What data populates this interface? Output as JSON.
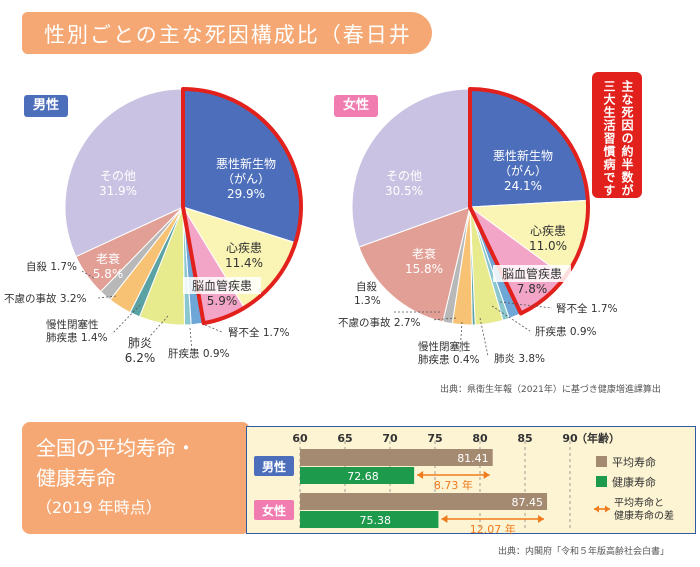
{
  "title": "性別ごとの主な死因構成比（春日井市）",
  "callout": {
    "line1": "主な死因の約半数が",
    "line2": "三大生活習慣病です"
  },
  "source1": "出典：県衛生年報（2021年）に基づき健康増進課算出",
  "section2_title": {
    "line1": "全国の平均寿命・",
    "line2": "健康寿命",
    "line3": "（2019 年時点）"
  },
  "source2": "出典：内閣府「令和５年版高齢社会白書」",
  "colors": {
    "cancer": "#4d6fbb",
    "heart": "#fbf5b5",
    "cerebro": "#f3a5c8",
    "kidney": "#6fa6d8",
    "liver": "#8ac7cf",
    "pneumonia": "#e7ea8d",
    "copd": "#5aa2a4",
    "accident": "#f8c275",
    "suicide": "#b8b8b8",
    "senility": "#e19f96",
    "other": "#c9c2e2",
    "highlight": "#e2211c",
    "male": "#4d6fbb",
    "female": "#f07cb0",
    "life": "#a58a72",
    "healthy": "#1e9a4c",
    "gap_arrow": "#f07b1d"
  },
  "chart_data": [
    {
      "type": "pie",
      "title": "男性",
      "slices": [
        {
          "key": "cancer",
          "label": "悪性新生物（がん）",
          "pct": "29.9%",
          "value": 29.9
        },
        {
          "key": "heart",
          "label": "心疾患",
          "pct": "11.4%",
          "value": 11.4
        },
        {
          "key": "cerebro",
          "label": "脳血管疾患",
          "pct": "5.9%",
          "value": 5.9
        },
        {
          "key": "kidney",
          "label": "腎不全",
          "pct": "1.7%",
          "value": 1.7
        },
        {
          "key": "liver",
          "label": "肝疾患",
          "pct": "0.9%",
          "value": 0.9
        },
        {
          "key": "pneumonia",
          "label": "肺炎",
          "pct": "6.2%",
          "value": 6.2
        },
        {
          "key": "copd",
          "label": "慢性閉塞性肺疾患",
          "pct": "1.4%",
          "value": 1.4
        },
        {
          "key": "accident",
          "label": "不慮の事故",
          "pct": "3.2%",
          "value": 3.2
        },
        {
          "key": "suicide",
          "label": "自殺",
          "pct": "1.7%",
          "value": 1.7
        },
        {
          "key": "senility",
          "label": "老衰",
          "pct": "5.8%",
          "value": 5.8
        },
        {
          "key": "other",
          "label": "その他",
          "pct": "31.9%",
          "value": 31.9
        }
      ]
    },
    {
      "type": "pie",
      "title": "女性",
      "slices": [
        {
          "key": "cancer",
          "label": "悪性新生物（がん）",
          "pct": "24.1%",
          "value": 24.1
        },
        {
          "key": "heart",
          "label": "心疾患",
          "pct": "11.0%",
          "value": 11.0
        },
        {
          "key": "cerebro",
          "label": "脳血管疾患",
          "pct": "7.8%",
          "value": 7.8
        },
        {
          "key": "kidney",
          "label": "腎不全",
          "pct": "1.7%",
          "value": 1.7
        },
        {
          "key": "liver",
          "label": "肝疾患",
          "pct": "0.9%",
          "value": 0.9
        },
        {
          "key": "pneumonia",
          "label": "肺炎",
          "pct": "3.8%",
          "value": 3.8
        },
        {
          "key": "copd",
          "label": "慢性閉塞性肺疾患",
          "pct": "0.4%",
          "value": 0.4
        },
        {
          "key": "accident",
          "label": "不慮の事故",
          "pct": "2.7%",
          "value": 2.7
        },
        {
          "key": "suicide",
          "label": "自殺",
          "pct": "1.3%",
          "value": 1.3
        },
        {
          "key": "senility",
          "label": "老衰",
          "pct": "15.8%",
          "value": 15.8
        },
        {
          "key": "other",
          "label": "その他",
          "pct": "30.5%",
          "value": 30.5
        }
      ]
    },
    {
      "type": "bar",
      "orientation": "horizontal",
      "categories": [
        "男性",
        "女性"
      ],
      "xlim": [
        60,
        90
      ],
      "ticks": [
        60,
        65,
        70,
        75,
        80,
        85,
        90
      ],
      "unit_label": "（年齢）",
      "series": [
        {
          "name": "平均寿命",
          "values": [
            81.41,
            87.45
          ],
          "labels": [
            "81.41",
            "87.45"
          ]
        },
        {
          "name": "健康寿命",
          "values": [
            72.68,
            75.38
          ],
          "labels": [
            "72.68",
            "75.38"
          ]
        }
      ],
      "gaps": [
        "8.73 年",
        "12.07 年"
      ],
      "legend": {
        "life": "平均寿命",
        "healthy": "健康寿命",
        "gap_line1": "平均寿命と",
        "gap_line2": "健康寿命の差"
      },
      "legend_position": "right"
    }
  ]
}
